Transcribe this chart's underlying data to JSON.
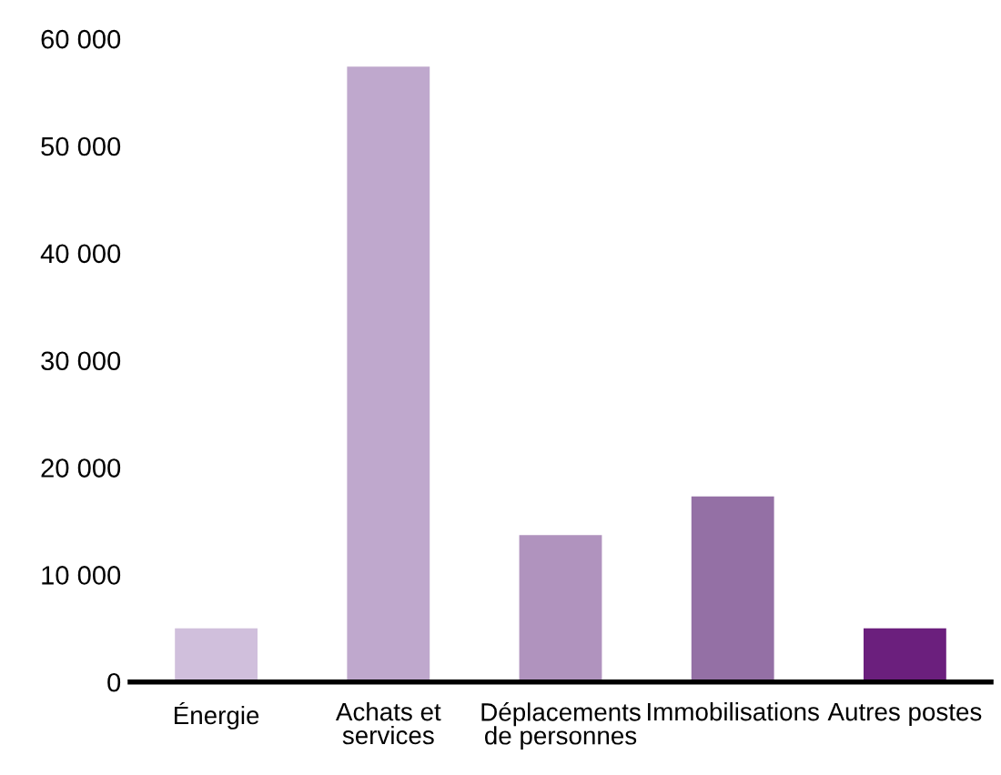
{
  "chart_data": {
    "type": "bar",
    "categories": [
      "Énergie",
      "Achats et\nservices",
      "Déplacements\nde personnes",
      "Immobilisations",
      "Autres postes"
    ],
    "values": [
      5000,
      57400,
      13700,
      17300,
      5000
    ],
    "colors": [
      "#d0bfdc",
      "#bfa8cd",
      "#b093be",
      "#9470a5",
      "#6b1f7d"
    ],
    "ylim": [
      0,
      60000
    ],
    "yticks": [
      {
        "value": 0,
        "label": "0"
      },
      {
        "value": 10000,
        "label": "10 000"
      },
      {
        "value": 20000,
        "label": "20 000"
      },
      {
        "value": 30000,
        "label": "30 000"
      },
      {
        "value": 40000,
        "label": "40 000"
      },
      {
        "value": 50000,
        "label": "50 000"
      },
      {
        "value": 60000,
        "label": "60 000"
      }
    ],
    "grid": false
  }
}
